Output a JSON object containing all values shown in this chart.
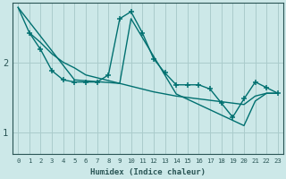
{
  "xlabel": "Humidex (Indice chaleur)",
  "bg_color": "#cce8e8",
  "line_color": "#007070",
  "grid_color": "#aacccc",
  "xlim": [
    -0.5,
    23.5
  ],
  "ylim": [
    0.7,
    2.85
  ],
  "yticks": [
    1,
    2
  ],
  "xticks": [
    0,
    1,
    2,
    3,
    4,
    5,
    6,
    7,
    8,
    9,
    10,
    11,
    12,
    13,
    14,
    15,
    16,
    17,
    18,
    19,
    20,
    21,
    22,
    23
  ],
  "line1_x": [
    0,
    1,
    2,
    3,
    4,
    5,
    6,
    7,
    8,
    9,
    10,
    11,
    12,
    13,
    14,
    15,
    16,
    17,
    18,
    19,
    20,
    21,
    22,
    23
  ],
  "line1_y": [
    2.78,
    2.42,
    2.28,
    2.12,
    2.0,
    1.92,
    1.82,
    1.78,
    1.74,
    1.7,
    1.66,
    1.62,
    1.58,
    1.55,
    1.52,
    1.5,
    1.48,
    1.46,
    1.44,
    1.42,
    1.4,
    1.52,
    1.56,
    1.56
  ],
  "line2_x": [
    1,
    2,
    3,
    4,
    5,
    6,
    7,
    8,
    9,
    10,
    11,
    12,
    13,
    14,
    15,
    16,
    17,
    18,
    19,
    20,
    21,
    22,
    23
  ],
  "line2_y": [
    2.42,
    2.18,
    1.88,
    1.75,
    1.72,
    1.72,
    1.72,
    1.82,
    2.62,
    2.72,
    2.42,
    2.05,
    1.85,
    1.68,
    1.68,
    1.68,
    1.62,
    1.42,
    1.22,
    1.48,
    1.72,
    1.64,
    1.56
  ],
  "line3_x": [
    0,
    5,
    9,
    10,
    14,
    20,
    21,
    22,
    23
  ],
  "line3_y": [
    2.78,
    1.75,
    1.7,
    2.62,
    1.55,
    1.1,
    1.45,
    1.56,
    1.56
  ]
}
